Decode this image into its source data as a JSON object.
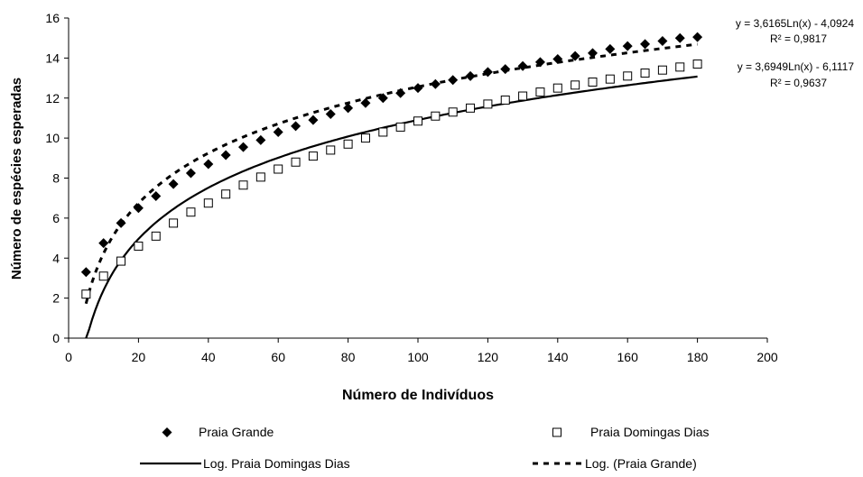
{
  "chart_data": {
    "type": "scatter",
    "title": "",
    "xlabel": "Número de Indivíduos",
    "ylabel": "Número de espécies esperadas",
    "xlim": [
      0,
      200
    ],
    "ylim": [
      0,
      16
    ],
    "xticks": [
      "0",
      "20",
      "40",
      "60",
      "80",
      "100",
      "120",
      "140",
      "160",
      "180",
      "200"
    ],
    "yticks": [
      "0",
      "2",
      "4",
      "6",
      "8",
      "10",
      "12",
      "14",
      "16"
    ],
    "grid": false,
    "legend_position": "bottom",
    "series": [
      {
        "name": "Praia Grande",
        "marker": "filled-diamond",
        "color": "#000000",
        "x": [
          5,
          10,
          15,
          20,
          25,
          30,
          35,
          40,
          45,
          50,
          55,
          60,
          65,
          70,
          75,
          80,
          85,
          90,
          95,
          100,
          105,
          110,
          115,
          120,
          125,
          130,
          135,
          140,
          145,
          150,
          155,
          160,
          165,
          170,
          175,
          180
        ],
        "y": [
          3.3,
          4.75,
          5.75,
          6.5,
          7.1,
          7.7,
          8.25,
          8.7,
          9.15,
          9.55,
          9.9,
          10.3,
          10.6,
          10.9,
          11.2,
          11.5,
          11.75,
          12.0,
          12.25,
          12.5,
          12.7,
          12.9,
          13.1,
          13.3,
          13.45,
          13.6,
          13.8,
          13.95,
          14.1,
          14.25,
          14.45,
          14.6,
          14.7,
          14.85,
          15.0,
          15.05
        ]
      },
      {
        "name": "Praia Domingas Dias",
        "marker": "open-square",
        "color": "#000000",
        "x": [
          5,
          10,
          15,
          20,
          25,
          30,
          35,
          40,
          45,
          50,
          55,
          60,
          65,
          70,
          75,
          80,
          85,
          90,
          95,
          100,
          105,
          110,
          115,
          120,
          125,
          130,
          135,
          140,
          145,
          150,
          155,
          160,
          165,
          170,
          175,
          180
        ],
        "y": [
          2.2,
          3.1,
          3.85,
          4.6,
          5.1,
          5.75,
          6.3,
          6.75,
          7.2,
          7.65,
          8.05,
          8.45,
          8.8,
          9.1,
          9.4,
          9.7,
          10.0,
          10.3,
          10.55,
          10.85,
          11.1,
          11.3,
          11.5,
          11.7,
          11.9,
          12.1,
          12.3,
          12.5,
          12.65,
          12.8,
          12.95,
          13.1,
          13.25,
          13.4,
          13.55,
          13.7
        ]
      }
    ],
    "trendlines": [
      {
        "name": "Log. Praia Domingas Dias",
        "of": "Praia Domingas Dias",
        "style": "solid",
        "a": 3.6949,
        "b": -6.1117,
        "x_range": [
          5,
          180
        ],
        "equation": "y = 3,6949Ln(x) - 6,1117",
        "r2": "R² = 0,9637"
      },
      {
        "name": "Log. (Praia Grande)",
        "of": "Praia Grande",
        "style": "dashed",
        "a": 3.6165,
        "b": -4.0924,
        "x_range": [
          5,
          180
        ],
        "equation": "y = 3,6165Ln(x) - 4,0924",
        "r2": "R² = 0,9817"
      }
    ],
    "legend": [
      {
        "label": "Praia Grande",
        "symbol": "filled-diamond"
      },
      {
        "label": "Praia Domingas Dias",
        "symbol": "open-square"
      },
      {
        "label": "Log. Praia Domingas Dias",
        "symbol": "solid-line"
      },
      {
        "label": "Log. (Praia Grande)",
        "symbol": "dashed-line"
      }
    ]
  }
}
